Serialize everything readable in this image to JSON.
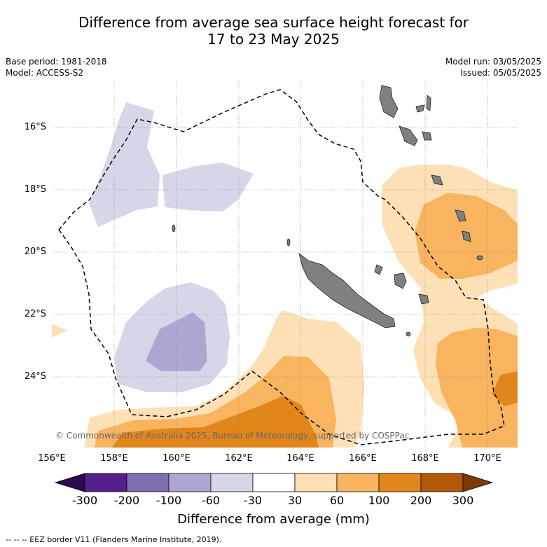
{
  "title": {
    "line1": "Difference from average sea surface height forecast for",
    "line2": "17 to 23 May 2025"
  },
  "meta": {
    "base_period": "Base period: 1981-2018",
    "model": "Model: ACCESS-S2",
    "model_run": "Model run: 03/05/2025",
    "issued": "Issued: 05/05/2025"
  },
  "axes": {
    "lat_labels": [
      "16°S",
      "18°S",
      "20°S",
      "22°S",
      "24°S"
    ],
    "lon_labels": [
      "156°E",
      "158°E",
      "160°E",
      "162°E",
      "164°E",
      "166°E",
      "168°E",
      "170°E"
    ]
  },
  "copyright": "© Commonwealth of Australia 2025, Bureau of Meteorology, supported by COSPPac",
  "colorbar": {
    "ticks": [
      "-300",
      "-200",
      "-100",
      "-60",
      "-30",
      "30",
      "60",
      "100",
      "200",
      "300"
    ],
    "title": "Difference from average (mm)",
    "colors": [
      "#2d0b4e",
      "#56208a",
      "#7f6faf",
      "#aea6d0",
      "#d6d6e9",
      "#ffffff",
      "#fde0b6",
      "#f8b45f",
      "#e1861b",
      "#b35808",
      "#7a3b06"
    ]
  },
  "footnote": "--  --  -- EEZ border V11 (Flanders Marine Institute, 2019)."
}
